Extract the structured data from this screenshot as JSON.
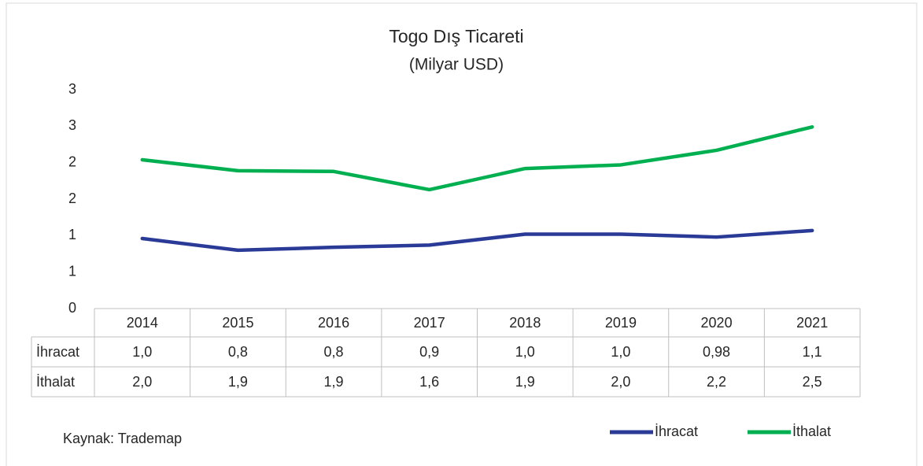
{
  "chart_data": {
    "type": "line",
    "title": "Togo Dış Ticareti",
    "subtitle": "(Milyar USD)",
    "categories": [
      "2014",
      "2015",
      "2016",
      "2017",
      "2018",
      "2019",
      "2020",
      "2021"
    ],
    "series": [
      {
        "name": "İhracat",
        "color": "#2a3a97",
        "values": [
          0.96,
          0.8,
          0.84,
          0.87,
          1.02,
          1.02,
          0.98,
          1.07
        ],
        "value_labels": [
          "1,0",
          "0,8",
          "0,8",
          "0,9",
          "1,0",
          "1,0",
          "0,98",
          "1,1"
        ]
      },
      {
        "name": "İthalat",
        "color": "#00b050",
        "values": [
          2.04,
          1.89,
          1.88,
          1.63,
          1.92,
          1.97,
          2.17,
          2.49
        ],
        "value_labels": [
          "2,0",
          "1,9",
          "1,9",
          "1,6",
          "1,9",
          "2,0",
          "2,2",
          "2,5"
        ]
      }
    ],
    "ylim": [
      0,
      3
    ],
    "yticks": [
      0,
      {
        "value": 0.5,
        "label": "1"
      },
      1,
      {
        "value": 1.5,
        "label": "2"
      },
      2,
      {
        "value": 2.5,
        "label": "3"
      },
      3
    ],
    "grid": false,
    "legend": "bottom-right",
    "source": "Kaynak: Trademap"
  }
}
